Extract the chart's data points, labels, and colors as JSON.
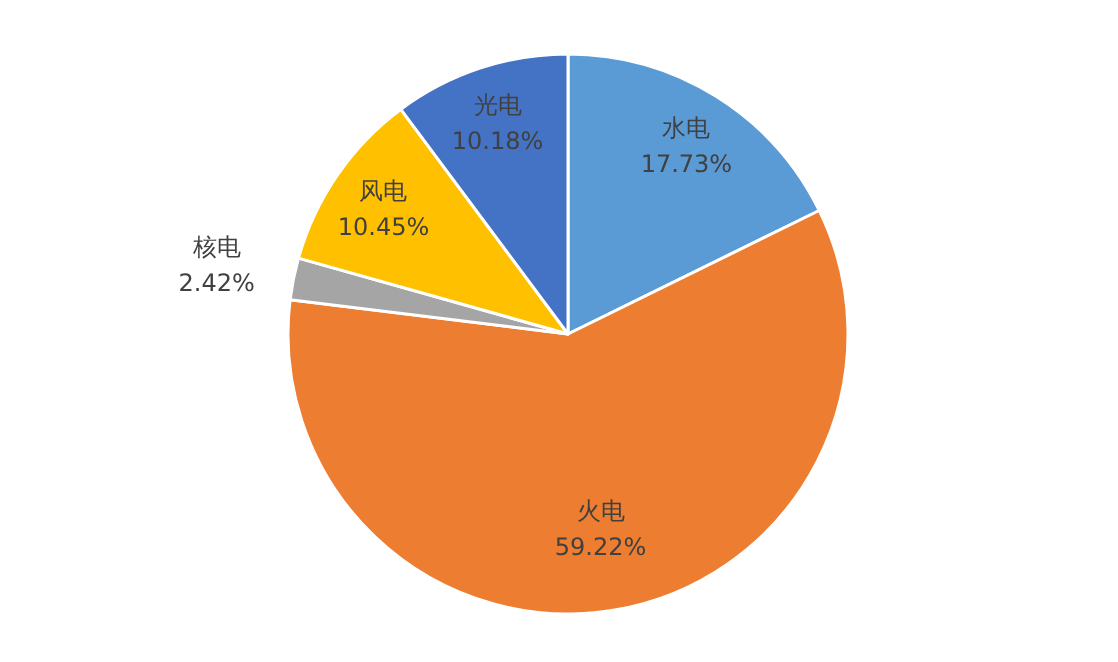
{
  "chart_data": {
    "type": "pie",
    "categories": [
      "水电",
      "火电",
      "核电",
      "风电",
      "光电"
    ],
    "values": [
      17.73,
      59.22,
      2.42,
      10.45,
      10.18
    ],
    "value_labels": [
      "17.73%",
      "59.22%",
      "2.42%",
      "10.45%",
      "10.18%"
    ],
    "colors": [
      "#5b9bd5",
      "#ed7d31",
      "#a5a5a5",
      "#ffc000",
      "#4472c4"
    ]
  }
}
